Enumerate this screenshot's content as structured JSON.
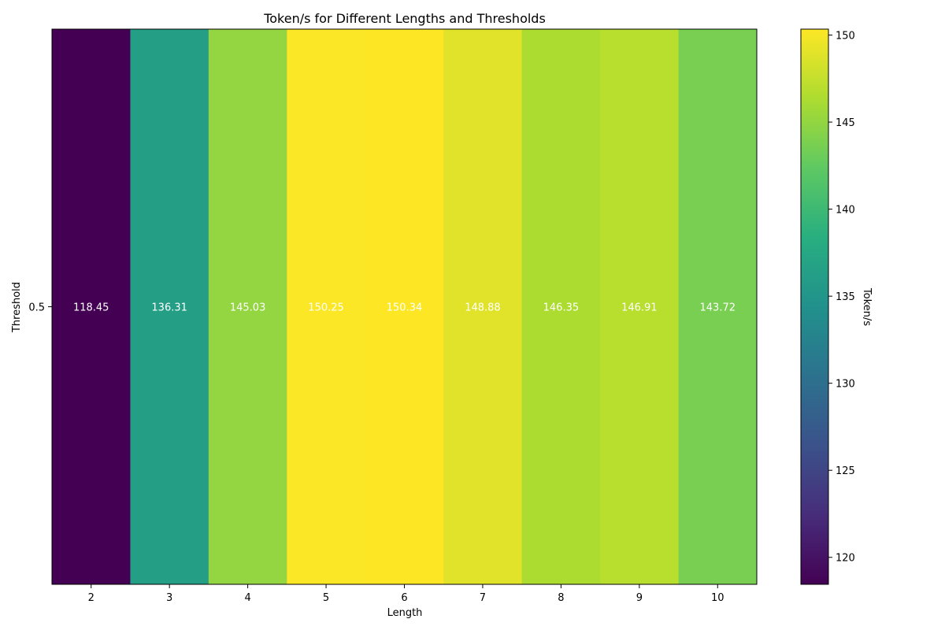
{
  "chart_data": {
    "type": "heatmap",
    "title": "Token/s for Different Lengths and Thresholds",
    "xlabel": "Length",
    "ylabel": "Threshold",
    "x_categories": [
      "2",
      "3",
      "4",
      "5",
      "6",
      "7",
      "8",
      "9",
      "10"
    ],
    "y_categories": [
      "0.5"
    ],
    "values": [
      [
        118.45,
        136.31,
        145.03,
        150.25,
        150.34,
        148.88,
        146.35,
        146.91,
        143.72
      ]
    ],
    "cell_labels": [
      [
        "118.45",
        "136.31",
        "145.03",
        "150.25",
        "150.34",
        "148.88",
        "146.35",
        "146.91",
        "143.72"
      ]
    ],
    "colormap": "viridis",
    "colorbar": {
      "label": "Token/s",
      "range": [
        118.45,
        150.34
      ],
      "ticks": [
        120,
        125,
        130,
        135,
        140,
        145,
        150
      ],
      "tick_labels": [
        "120",
        "125",
        "130",
        "135",
        "140",
        "145",
        "150"
      ]
    },
    "annotation_color": "#ffffff",
    "grid": false
  }
}
